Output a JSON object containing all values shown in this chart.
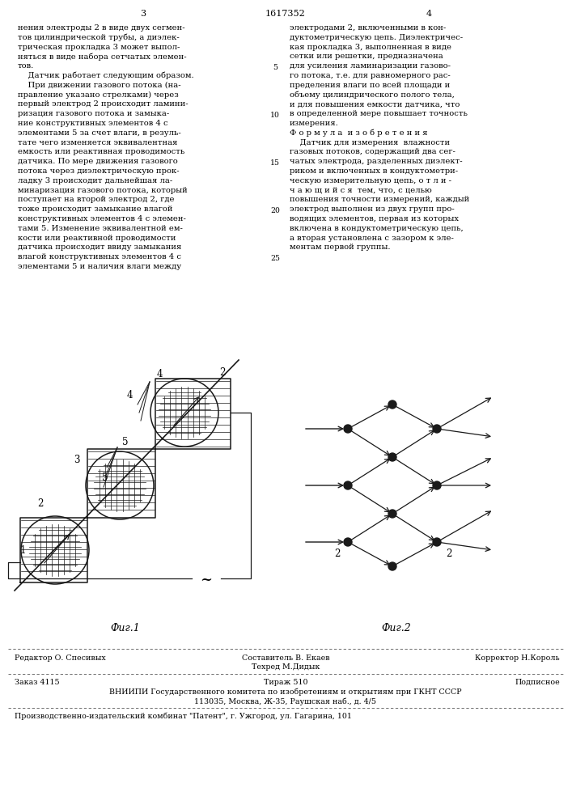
{
  "page_number_left": "3",
  "patent_number": "1617352",
  "page_number_right": "4",
  "col_left_text": [
    "нения электроды 2 в виде двух сегмен-",
    "тов цилиндрической трубы, а диэлек-",
    "трическая прокладка 3 может выпол-",
    "няться в виде набора сетчатых элемен-",
    "тов.",
    "    Датчик работает следующим образом.",
    "    При движении газового потока (на-",
    "правление указано стрелками) через",
    "первый электрод 2 происходит ламини-",
    "ризация газового потока и замыка-",
    "ние конструктивных элементов 4 с",
    "элементами 5 за счет влаги, в резуль-",
    "тате чего изменяется эквивалентная",
    "емкость или реактивная проводимость",
    "датчика. По мере движения газового",
    "потока через диэлектрическую прок-",
    "ладку 3 происходит дальнейшая ла-",
    "минаризация газового потока, который",
    "поступает на второй электрод 2, где",
    "тоже происходит замыкание влагой",
    "конструктивных элементов 4 с элемен-",
    "тами 5. Изменение эквивалентной ем-",
    "кости или реактивной проводимости",
    "датчика происходит ввиду замыкания",
    "влагой конструктивных элементов 4 с",
    "элементами 5 и наличия влаги между"
  ],
  "col_right_text": [
    "электродами 2, включенными в кон-",
    "дуктометрическую цепь. Диэлектричес-",
    "кая прокладка 3, выполненная в виде",
    "сетки или решетки, предназначена",
    "для усиления ламинаризации газово-",
    "го потока, т.е. для равномерного рас-",
    "пределения влаги по всей площади и",
    "объему цилиндрического полого тела,",
    "и для повышения емкости датчика, что",
    "в определенной мере повышает точность",
    "измерения.",
    "Ф о р м у л а  и з о б р е т е н и я",
    "    Датчик для измерения  влажности",
    "газовых потоков, содержащий два сег-",
    "чатых электрода, разделенных диэлект-",
    "риком и включенных в кондуктометри-",
    "ческую измерительную цепь, о т л и -",
    "ч а ю щ и й с я  тем, что, с целью",
    "повышения точности измерений, каждый",
    "электрод выполнен из двух групп про-",
    "водящих элементов, первая из которых",
    "включена в кондуктометрическую цепь,",
    "а вторая установлена с зазором к эле-",
    "ментам первой группы."
  ],
  "line_numbers": [
    "5",
    "10",
    "15",
    "20",
    "25"
  ],
  "line_number_rows": [
    4,
    9,
    14,
    19,
    24
  ],
  "fig1_caption": "Фиг.1",
  "fig2_caption": "Фиг.2",
  "footer_editor": "Редактор О. Спесивых",
  "footer_compiler": "Составитель В. Екаев",
  "footer_corrector": "Корректор Н.Король",
  "footer_techred": "Техред М.Дидык",
  "footer_order": "Заказ 4115",
  "footer_tirazh": "Тираж 510",
  "footer_podpisnoe": "Подписное",
  "footer_vniiipi": "ВНИИПИ Государственного комитета по изобретениям и открытиям при ГКНТ СССР",
  "footer_address": "113035, Москва, Ж-35, Раушская наб., д. 4/5",
  "footer_production": "Производственно-издательский комбинат \"Патент\", г. Ужгород, ул. Гагарина, 101",
  "bg_color": "#ffffff",
  "text_color": "#000000",
  "font_size_main": 7.2,
  "font_size_header": 8.0,
  "font_size_footer": 6.8,
  "font_size_caption": 9.0
}
